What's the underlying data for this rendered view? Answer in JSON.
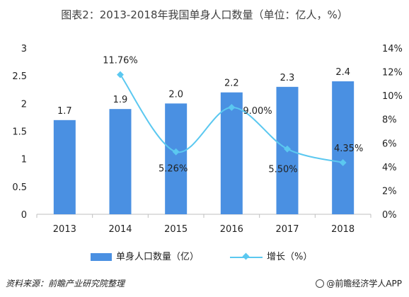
{
  "title": "图表2：2013-2018年我国单身人口数量（单位：亿人，%）",
  "chart_data": {
    "type": "bar",
    "categories": [
      "2013",
      "2014",
      "2015",
      "2016",
      "2017",
      "2018"
    ],
    "series": [
      {
        "name": "单身人口数量（亿）",
        "type": "bar",
        "axis": "left",
        "values": [
          1.7,
          1.9,
          2.0,
          2.2,
          2.3,
          2.4
        ],
        "labels": [
          "1.7",
          "1.9",
          "2.0",
          "2.2",
          "2.3",
          "2.4"
        ]
      },
      {
        "name": "增长（%）",
        "type": "line",
        "axis": "right",
        "x": [
          "2014",
          "2015",
          "2016",
          "2017",
          "2018"
        ],
        "values": [
          11.76,
          5.26,
          9.0,
          5.5,
          4.35
        ],
        "labels": [
          "11.76%",
          "5.26%",
          "9.00%",
          "5.50%",
          "4.35%"
        ]
      }
    ],
    "ylim_left": [
      0,
      3
    ],
    "yticks_left": [
      "0",
      "0.5",
      "1",
      "1.5",
      "2",
      "2.5",
      "3"
    ],
    "ylim_right": [
      0,
      14
    ],
    "yticks_right": [
      "0%",
      "2%",
      "4%",
      "6%",
      "8%",
      "10%",
      "12%",
      "14%"
    ],
    "grid": false,
    "legend_position": "bottom"
  },
  "colors": {
    "bar": "#4a90e2",
    "line": "#5bc8f0",
    "axis": "#bfbfbf",
    "text": "#222222"
  },
  "footer": {
    "source": "资料来源：前瞻产业研究院整理",
    "brand": "@前瞻经济学人APP"
  }
}
